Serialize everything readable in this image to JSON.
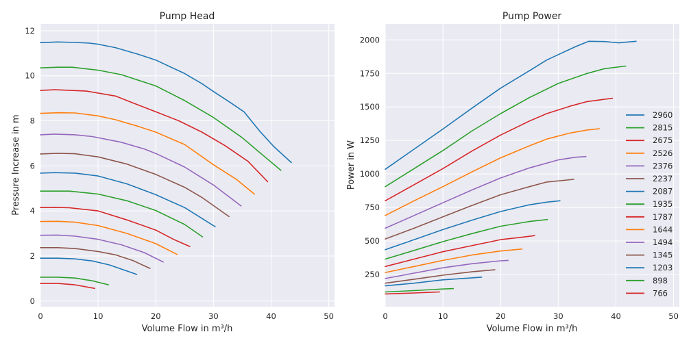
{
  "style": {
    "background": "#eaeaf2",
    "grid": "#ffffff"
  },
  "colors": [
    "#1f77b4",
    "#2ca02c",
    "#d62728",
    "#ff7f0e",
    "#9467bd",
    "#8c564b",
    "#1f77b4",
    "#2ca02c",
    "#d62728",
    "#ff7f0e",
    "#9467bd",
    "#8c564b",
    "#1f77b4",
    "#2ca02c",
    "#d62728"
  ],
  "chart_data": [
    {
      "type": "line",
      "title": "Pump Head",
      "xlabel": "Volume Flow in m³/h",
      "ylabel": "Pressure Increase in m",
      "xlim": [
        0,
        51
      ],
      "ylim": [
        -0.25,
        12.3
      ],
      "xticks": [
        0,
        10,
        20,
        30,
        40,
        50
      ],
      "yticks": [
        0,
        2,
        4,
        6,
        8,
        10,
        12
      ],
      "grid": true,
      "legend": null,
      "series": [
        {
          "points": [
            [
              0,
              11.47
            ],
            [
              3,
              11.5
            ],
            [
              6,
              11.48
            ],
            [
              8.5,
              11.45
            ],
            [
              10,
              11.4
            ],
            [
              13,
              11.25
            ],
            [
              17,
              10.95
            ],
            [
              20,
              10.7
            ],
            [
              25,
              10.1
            ],
            [
              28,
              9.65
            ],
            [
              30,
              9.3
            ],
            [
              33,
              8.8
            ],
            [
              35.3,
              8.4
            ],
            [
              38,
              7.55
            ],
            [
              40.5,
              6.85
            ],
            [
              43.5,
              6.15
            ]
          ]
        },
        {
          "points": [
            [
              0,
              10.35
            ],
            [
              3,
              10.38
            ],
            [
              5.5,
              10.38
            ],
            [
              10,
              10.25
            ],
            [
              14,
              10.05
            ],
            [
              17,
              9.8
            ],
            [
              20,
              9.55
            ],
            [
              25,
              8.9
            ],
            [
              30,
              8.15
            ],
            [
              35,
              7.25
            ],
            [
              38,
              6.6
            ],
            [
              41.7,
              5.8
            ]
          ]
        },
        {
          "points": [
            [
              0,
              9.35
            ],
            [
              2.5,
              9.38
            ],
            [
              8,
              9.32
            ],
            [
              13,
              9.1
            ],
            [
              16,
              8.8
            ],
            [
              20,
              8.4
            ],
            [
              24,
              8.0
            ],
            [
              28,
              7.5
            ],
            [
              32,
              6.9
            ],
            [
              36,
              6.2
            ],
            [
              39.4,
              5.3
            ]
          ]
        },
        {
          "points": [
            [
              0,
              8.33
            ],
            [
              3,
              8.36
            ],
            [
              6,
              8.35
            ],
            [
              10,
              8.22
            ],
            [
              13,
              8.05
            ],
            [
              17,
              7.75
            ],
            [
              20,
              7.5
            ],
            [
              25,
              6.95
            ],
            [
              30,
              6.05
            ],
            [
              34,
              5.4
            ],
            [
              37.1,
              4.75
            ]
          ]
        },
        {
          "points": [
            [
              0,
              7.38
            ],
            [
              2.5,
              7.41
            ],
            [
              6,
              7.38
            ],
            [
              9,
              7.3
            ],
            [
              14,
              7.05
            ],
            [
              18,
              6.75
            ],
            [
              20,
              6.55
            ],
            [
              25,
              5.95
            ],
            [
              30,
              5.15
            ],
            [
              34.8,
              4.22
            ]
          ]
        },
        {
          "points": [
            [
              0,
              6.53
            ],
            [
              3,
              6.56
            ],
            [
              6,
              6.54
            ],
            [
              10,
              6.4
            ],
            [
              15,
              6.08
            ],
            [
              20,
              5.62
            ],
            [
              25,
              5.05
            ],
            [
              28,
              4.6
            ],
            [
              32.7,
              3.75
            ]
          ]
        },
        {
          "points": [
            [
              0,
              5.68
            ],
            [
              2.5,
              5.7
            ],
            [
              6,
              5.68
            ],
            [
              10,
              5.55
            ],
            [
              15,
              5.2
            ],
            [
              20,
              4.72
            ],
            [
              25,
              4.15
            ],
            [
              30.3,
              3.3
            ]
          ]
        },
        {
          "points": [
            [
              0,
              4.88
            ],
            [
              5,
              4.88
            ],
            [
              10,
              4.75
            ],
            [
              15,
              4.45
            ],
            [
              20,
              4.02
            ],
            [
              25,
              3.4
            ],
            [
              28.1,
              2.85
            ]
          ]
        },
        {
          "points": [
            [
              0,
              4.15
            ],
            [
              2.5,
              4.16
            ],
            [
              5,
              4.14
            ],
            [
              10,
              4.0
            ],
            [
              15,
              3.6
            ],
            [
              20,
              3.15
            ],
            [
              23,
              2.75
            ],
            [
              25.9,
              2.42
            ]
          ]
        },
        {
          "points": [
            [
              0,
              3.53
            ],
            [
              3,
              3.54
            ],
            [
              6,
              3.5
            ],
            [
              10,
              3.35
            ],
            [
              15,
              3.0
            ],
            [
              20,
              2.55
            ],
            [
              23.7,
              2.07
            ]
          ]
        },
        {
          "points": [
            [
              0,
              2.92
            ],
            [
              3,
              2.93
            ],
            [
              6,
              2.88
            ],
            [
              10,
              2.74
            ],
            [
              14,
              2.5
            ],
            [
              18,
              2.15
            ],
            [
              21.3,
              1.73
            ]
          ]
        },
        {
          "points": [
            [
              0,
              2.37
            ],
            [
              3,
              2.37
            ],
            [
              6,
              2.33
            ],
            [
              10,
              2.2
            ],
            [
              13,
              2.05
            ],
            [
              16,
              1.8
            ],
            [
              19,
              1.45
            ]
          ]
        },
        {
          "points": [
            [
              0,
              1.9
            ],
            [
              3,
              1.9
            ],
            [
              6,
              1.87
            ],
            [
              9,
              1.78
            ],
            [
              12,
              1.6
            ],
            [
              16.7,
              1.18
            ]
          ]
        },
        {
          "points": [
            [
              0,
              1.06
            ],
            [
              3,
              1.06
            ],
            [
              6,
              1.02
            ],
            [
              9,
              0.9
            ],
            [
              11.8,
              0.72
            ]
          ]
        },
        {
          "points": [
            [
              0,
              0.78
            ],
            [
              3,
              0.78
            ],
            [
              6,
              0.72
            ],
            [
              9.4,
              0.56
            ]
          ]
        }
      ]
    },
    {
      "type": "line",
      "title": "Pump Power",
      "xlabel": "Volume Flow in m³/h",
      "ylabel": "Power in W",
      "xlim": [
        0,
        51
      ],
      "ylim": [
        10,
        2119
      ],
      "xticks": [
        0,
        10,
        20,
        30,
        40,
        50
      ],
      "yticks": [
        250,
        500,
        750,
        1000,
        1250,
        1500,
        1750,
        2000
      ],
      "grid": true,
      "legend": "lower right",
      "series": [
        {
          "name": "2960",
          "points": [
            [
              0,
              1035
            ],
            [
              5,
              1185
            ],
            [
              10,
              1335
            ],
            [
              15,
              1490
            ],
            [
              20,
              1640
            ],
            [
              25,
              1770
            ],
            [
              28,
              1850
            ],
            [
              30,
              1890
            ],
            [
              33,
              1950
            ],
            [
              35.3,
              1990
            ],
            [
              38,
              1988
            ],
            [
              40.5,
              1978
            ],
            [
              43.5,
              1990
            ]
          ]
        },
        {
          "name": "2815",
          "points": [
            [
              0,
              905
            ],
            [
              5,
              1040
            ],
            [
              10,
              1175
            ],
            [
              15,
              1320
            ],
            [
              20,
              1450
            ],
            [
              25,
              1570
            ],
            [
              30,
              1675
            ],
            [
              35,
              1750
            ],
            [
              38,
              1785
            ],
            [
              41.7,
              1805
            ]
          ]
        },
        {
          "name": "2675",
          "points": [
            [
              0,
              800
            ],
            [
              5,
              920
            ],
            [
              10,
              1040
            ],
            [
              15,
              1170
            ],
            [
              20,
              1290
            ],
            [
              25,
              1395
            ],
            [
              28,
              1450
            ],
            [
              32,
              1505
            ],
            [
              35,
              1540
            ],
            [
              39.4,
              1565
            ]
          ]
        },
        {
          "name": "2526",
          "points": [
            [
              0,
              690
            ],
            [
              5,
              800
            ],
            [
              10,
              905
            ],
            [
              15,
              1015
            ],
            [
              20,
              1120
            ],
            [
              25,
              1210
            ],
            [
              28,
              1260
            ],
            [
              32,
              1305
            ],
            [
              35,
              1328
            ],
            [
              37.1,
              1337
            ]
          ]
        },
        {
          "name": "2376",
          "points": [
            [
              0,
              595
            ],
            [
              5,
              690
            ],
            [
              10,
              785
            ],
            [
              15,
              880
            ],
            [
              20,
              970
            ],
            [
              25,
              1045
            ],
            [
              30,
              1105
            ],
            [
              33,
              1125
            ],
            [
              34.8,
              1130
            ]
          ]
        },
        {
          "name": "2237",
          "points": [
            [
              0,
              515
            ],
            [
              5,
              595
            ],
            [
              10,
              680
            ],
            [
              15,
              765
            ],
            [
              20,
              845
            ],
            [
              25,
              905
            ],
            [
              28,
              940
            ],
            [
              32.7,
              960
            ]
          ]
        },
        {
          "name": "2087",
          "points": [
            [
              0,
              435
            ],
            [
              5,
              510
            ],
            [
              10,
              585
            ],
            [
              15,
              655
            ],
            [
              20,
              720
            ],
            [
              25,
              770
            ],
            [
              28,
              790
            ],
            [
              30.3,
              800
            ]
          ]
        },
        {
          "name": "1935",
          "points": [
            [
              0,
              365
            ],
            [
              5,
              430
            ],
            [
              10,
              495
            ],
            [
              15,
              555
            ],
            [
              20,
              610
            ],
            [
              25,
              645
            ],
            [
              28.1,
              660
            ]
          ]
        },
        {
          "name": "1787",
          "points": [
            [
              0,
              310
            ],
            [
              5,
              365
            ],
            [
              10,
              420
            ],
            [
              15,
              465
            ],
            [
              20,
              510
            ],
            [
              25,
              535
            ],
            [
              25.9,
              540
            ]
          ]
        },
        {
          "name": "1644",
          "points": [
            [
              0,
              265
            ],
            [
              5,
              310
            ],
            [
              10,
              355
            ],
            [
              15,
              395
            ],
            [
              20,
              425
            ],
            [
              23.7,
              440
            ]
          ]
        },
        {
          "name": "1494",
          "points": [
            [
              0,
              220
            ],
            [
              5,
              260
            ],
            [
              10,
              300
            ],
            [
              15,
              330
            ],
            [
              20,
              352
            ],
            [
              21.3,
              355
            ]
          ]
        },
        {
          "name": "1345",
          "points": [
            [
              0,
              185
            ],
            [
              5,
              215
            ],
            [
              10,
              245
            ],
            [
              15,
              270
            ],
            [
              19,
              285
            ]
          ]
        },
        {
          "name": "1203",
          "points": [
            [
              0,
              165
            ],
            [
              5,
              185
            ],
            [
              10,
              210
            ],
            [
              15,
              225
            ],
            [
              16.7,
              230
            ]
          ]
        },
        {
          "name": "898",
          "points": [
            [
              0,
              120
            ],
            [
              5,
              130
            ],
            [
              10,
              142
            ],
            [
              11.8,
              145
            ]
          ]
        },
        {
          "name": "766",
          "points": [
            [
              0,
              105
            ],
            [
              5,
              112
            ],
            [
              9.4,
              120
            ]
          ]
        }
      ]
    }
  ]
}
